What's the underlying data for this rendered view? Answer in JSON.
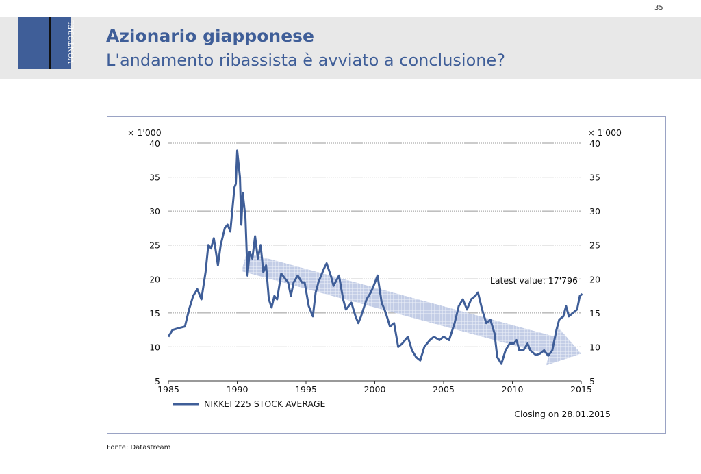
{
  "page_number": "35",
  "logo_text": "VONTOBEL",
  "header": {
    "title": "Azionario giapponese",
    "subtitle": "L'andamento ribassista è avviato a conclusione?"
  },
  "source": "Fonte: Datastream",
  "colors": {
    "brand": "#3f5e98",
    "line": "#3f5e98",
    "arrow": "#b8c4e0"
  },
  "chart_data": {
    "type": "line",
    "title": "",
    "unit_left": "× 1'000",
    "unit_right": "× 1'000",
    "xlim": [
      1985,
      2015
    ],
    "ylim": [
      5,
      40
    ],
    "xticks": [
      "1985",
      "1990",
      "1995",
      "2000",
      "2005",
      "2010",
      "2015"
    ],
    "yticks": [
      "5",
      "10",
      "15",
      "20",
      "25",
      "30",
      "35",
      "40"
    ],
    "grid": true,
    "legend": "NIKKEI 225 STOCK AVERAGE",
    "legend_position": "bottom-left",
    "annotation_latest": "Latest value: 17'796",
    "annotation_closing": "Closing on 28.01.2015",
    "trend_arrow": {
      "from": [
        1990.5,
        22.5
      ],
      "to": [
        2015,
        9
      ]
    },
    "series": [
      {
        "name": "NIKKEI 225 STOCK AVERAGE",
        "x": [
          1985,
          1985.3,
          1985.8,
          1986.2,
          1986.5,
          1986.8,
          1987.1,
          1987.4,
          1987.7,
          1987.9,
          1988.1,
          1988.3,
          1988.6,
          1988.8,
          1989.1,
          1989.3,
          1989.5,
          1989.8,
          1989.9,
          1990.0,
          1990.2,
          1990.3,
          1990.4,
          1990.6,
          1990.75,
          1990.9,
          1991.1,
          1991.3,
          1991.5,
          1991.7,
          1991.9,
          1992.1,
          1992.3,
          1992.5,
          1992.7,
          1992.9,
          1993.2,
          1993.5,
          1993.7,
          1993.9,
          1994.1,
          1994.4,
          1994.7,
          1994.9,
          1995.2,
          1995.5,
          1995.7,
          1995.9,
          1996.3,
          1996.5,
          1996.8,
          1997.0,
          1997.4,
          1997.7,
          1997.9,
          1998.3,
          1998.6,
          1998.8,
          1999.0,
          1999.4,
          1999.7,
          1999.9,
          2000.2,
          2000.5,
          2000.8,
          2001.1,
          2001.4,
          2001.7,
          2002.0,
          2002.4,
          2002.7,
          2003.0,
          2003.3,
          2003.6,
          2004.0,
          2004.3,
          2004.7,
          2005.0,
          2005.4,
          2005.8,
          2006.1,
          2006.4,
          2006.7,
          2007.0,
          2007.3,
          2007.5,
          2007.8,
          2008.1,
          2008.4,
          2008.7,
          2008.9,
          2009.2,
          2009.5,
          2009.8,
          2010.1,
          2010.3,
          2010.5,
          2010.8,
          2011.1,
          2011.3,
          2011.7,
          2012.0,
          2012.3,
          2012.6,
          2012.9,
          2013.2,
          2013.4,
          2013.7,
          2013.9,
          2014.1,
          2014.4,
          2014.7,
          2014.9,
          2015.08
        ],
        "values": [
          11.5,
          12.5,
          12.8,
          13,
          15.5,
          17.5,
          18.5,
          17,
          21,
          25,
          24.5,
          26,
          22,
          25,
          27.5,
          28,
          27,
          33.5,
          34,
          38.9,
          35,
          28,
          32.7,
          29,
          20.5,
          24,
          23,
          26.3,
          23,
          25,
          21,
          22,
          17,
          15.8,
          17.5,
          17,
          20.8,
          20,
          19.5,
          17.5,
          19.5,
          20.5,
          19.5,
          19.5,
          16,
          14.5,
          18,
          19.5,
          21.5,
          22.3,
          20.5,
          19,
          20.5,
          17,
          15.5,
          16.5,
          14.5,
          13.5,
          14.5,
          17,
          18,
          18.9,
          20.5,
          16.5,
          15,
          13,
          13.5,
          10,
          10.5,
          11.5,
          9.5,
          8.5,
          8.0,
          10,
          11,
          11.5,
          11,
          11.5,
          11,
          13.5,
          16,
          17,
          15.5,
          17,
          17.5,
          18,
          15.5,
          13.5,
          14,
          12,
          8.5,
          7.5,
          9.5,
          10.5,
          10.5,
          11.0,
          9.5,
          9.5,
          10.5,
          9.5,
          8.8,
          9,
          9.5,
          8.7,
          9.5,
          12.5,
          14,
          14.5,
          16,
          14.5,
          15,
          15.5,
          17.5,
          17.8
        ]
      }
    ]
  }
}
